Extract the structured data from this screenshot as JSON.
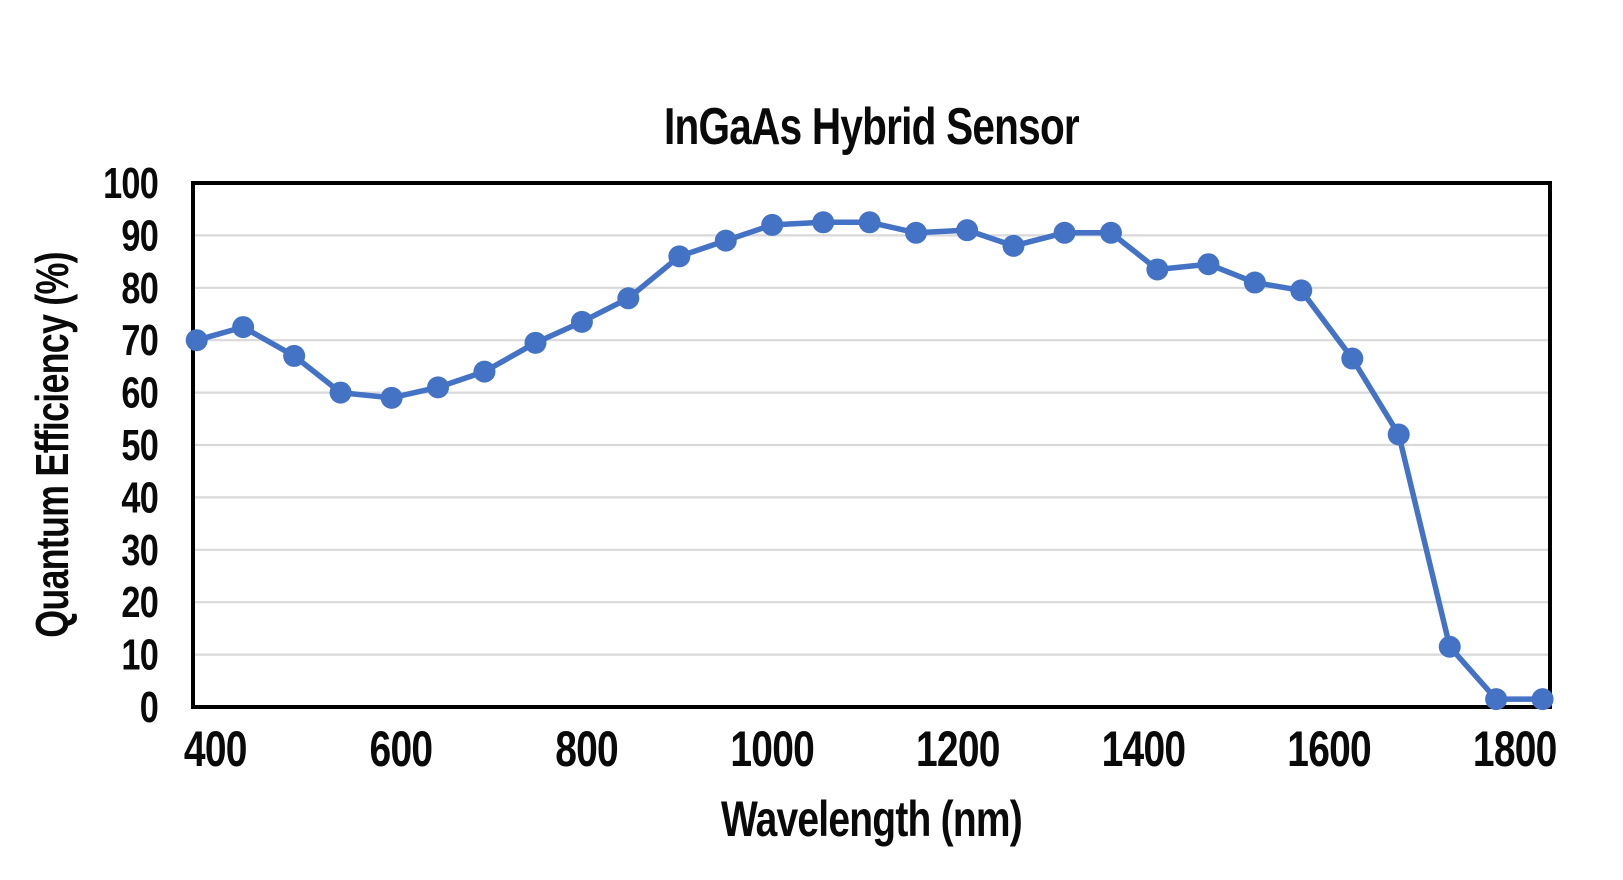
{
  "chart_data": {
    "type": "line",
    "title": "InGaAs Hybrid Sensor",
    "xlabel": "Wavelength (nm)",
    "ylabel": "Quantum Efficiency (%)",
    "series": [
      {
        "x": [
          380,
          430,
          485,
          535,
          590,
          640,
          690,
          745,
          795,
          845,
          900,
          950,
          1000,
          1055,
          1105,
          1155,
          1210,
          1260,
          1315,
          1365,
          1415,
          1470,
          1520,
          1570,
          1625,
          1675,
          1730,
          1780,
          1830
        ],
        "y": [
          70,
          72.5,
          67,
          60,
          59,
          61,
          64,
          69.5,
          73.5,
          78,
          86,
          89,
          92,
          92.5,
          92.5,
          90.5,
          91,
          88,
          90.5,
          90.5,
          83.5,
          84.5,
          81,
          79.5,
          66.5,
          52,
          11.5,
          1.5,
          1.5
        ],
        "color": "#4472C4",
        "marker": "circle"
      }
    ],
    "xlim": [
      376,
      1838
    ],
    "ylim": [
      0,
      100
    ],
    "xticks": [
      400,
      600,
      800,
      1000,
      1200,
      1400,
      1600,
      1800
    ],
    "yticks": [
      0,
      10,
      20,
      30,
      40,
      50,
      60,
      70,
      80,
      90,
      100
    ],
    "grid": "horizontal-only",
    "legend": "none",
    "gridline_color": "#D9D9D9",
    "axis_color": "#000000",
    "text_color": "#0a0a0a",
    "background_color": "#ffffff"
  }
}
